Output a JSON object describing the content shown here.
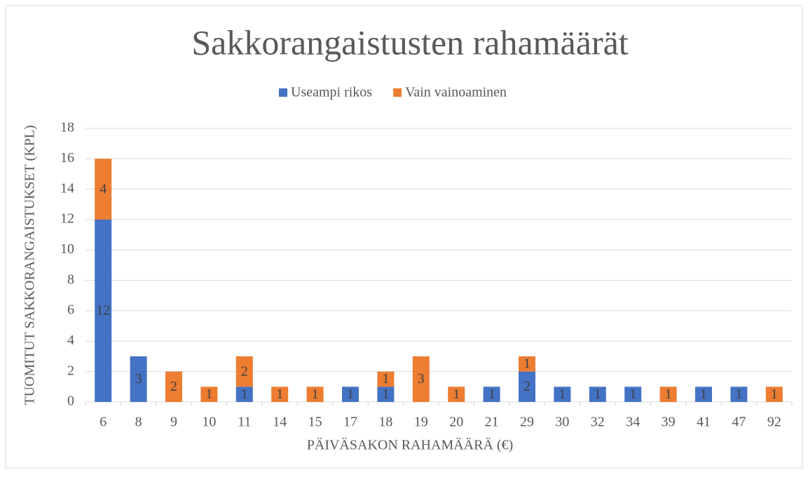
{
  "chart_data": {
    "type": "stacked_bar",
    "title": "Sakkorangaistusten rahamäärät",
    "x_label": "PÄIVÄSAKON RAHAMÄÄRÄ (€)",
    "y_label": "TUOMITUT SAKKORANGAISTUKSET (KPL)",
    "categories": [
      "6",
      "8",
      "9",
      "10",
      "11",
      "14",
      "15",
      "17",
      "18",
      "19",
      "20",
      "21",
      "29",
      "30",
      "32",
      "34",
      "39",
      "41",
      "47",
      "92"
    ],
    "series": [
      {
        "name": "Useampi rikos",
        "color": "#4472c4",
        "values": [
          12,
          3,
          null,
          null,
          1,
          null,
          null,
          1,
          1,
          null,
          null,
          1,
          2,
          1,
          1,
          1,
          null,
          1,
          1,
          null
        ]
      },
      {
        "name": "Vain vainoaminen",
        "color": "#ed7d31",
        "values": [
          4,
          null,
          2,
          1,
          2,
          1,
          1,
          null,
          1,
          3,
          1,
          null,
          1,
          null,
          null,
          null,
          1,
          null,
          null,
          1
        ]
      }
    ],
    "ylim": [
      0,
      18
    ],
    "yticks": [
      0,
      2,
      4,
      6,
      8,
      10,
      12,
      14,
      16,
      18
    ],
    "grid": true,
    "legend": "top"
  }
}
